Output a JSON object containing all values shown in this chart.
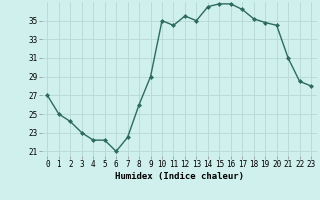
{
  "x": [
    0,
    1,
    2,
    3,
    4,
    5,
    6,
    7,
    8,
    9,
    10,
    11,
    12,
    13,
    14,
    15,
    16,
    17,
    18,
    19,
    20,
    21,
    22,
    23
  ],
  "y": [
    27,
    25,
    24.2,
    23,
    22.2,
    22.2,
    21,
    22.5,
    26,
    29,
    35,
    34.5,
    35.5,
    35,
    36.5,
    36.8,
    36.8,
    36.2,
    35.2,
    34.8,
    34.5,
    31,
    28.5,
    28
  ],
  "xlabel": "Humidex (Indice chaleur)",
  "xlim": [
    -0.5,
    23.5
  ],
  "ylim": [
    20.5,
    37
  ],
  "yticks": [
    21,
    23,
    25,
    27,
    29,
    31,
    33,
    35
  ],
  "xticks": [
    0,
    1,
    2,
    3,
    4,
    5,
    6,
    7,
    8,
    9,
    10,
    11,
    12,
    13,
    14,
    15,
    16,
    17,
    18,
    19,
    20,
    21,
    22,
    23
  ],
  "line_color": "#2d6b5e",
  "marker": "D",
  "marker_size": 2.0,
  "line_width": 1.0,
  "bg_color": "#cff0ec",
  "grid_color": "#b8d8d4",
  "xlabel_fontsize": 6.5,
  "tick_fontsize": 5.5
}
